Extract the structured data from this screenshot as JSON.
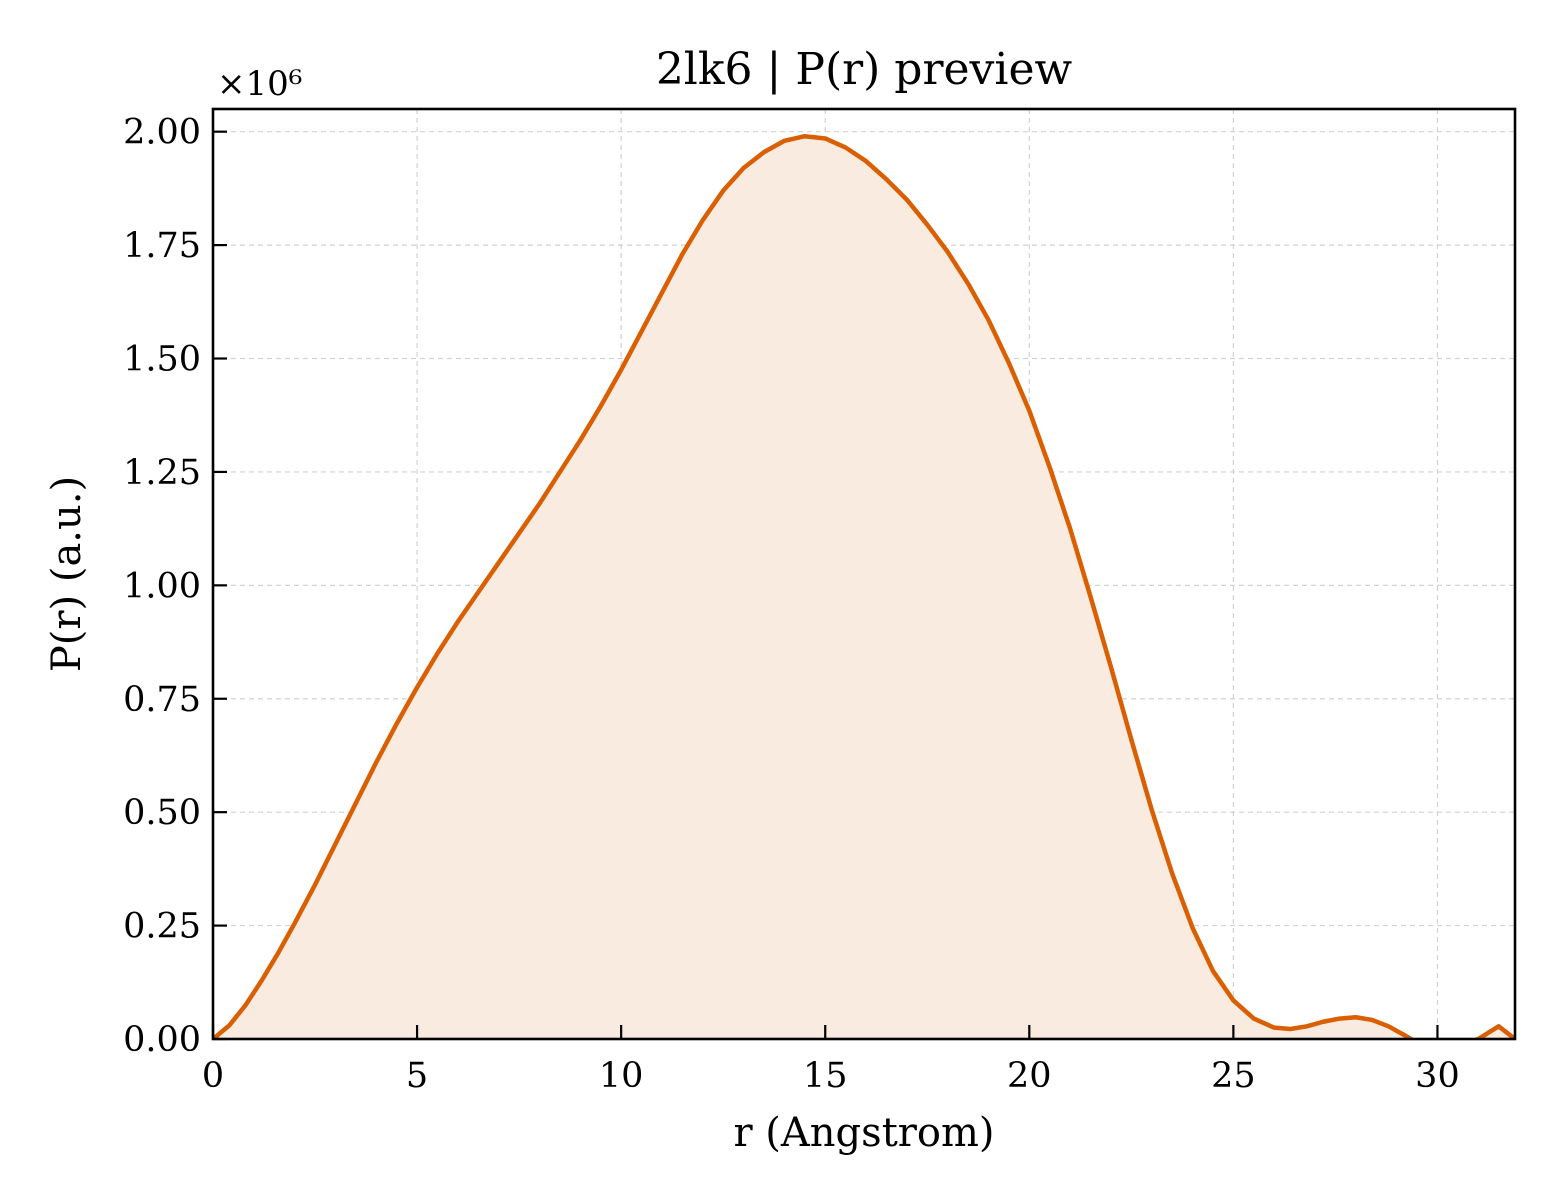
{
  "chart_data": {
    "type": "area",
    "title": "2lk6 | P(r) preview",
    "xlabel": "r (Angstrom)",
    "ylabel": "P(r) (a.u.)",
    "y_offset_label": "×10⁶",
    "y_scale": 1000000,
    "xlim": [
      0,
      31.9
    ],
    "ylim": [
      0,
      2.05
    ],
    "xticks": [
      0,
      5,
      10,
      15,
      20,
      25,
      30
    ],
    "xtick_labels": [
      "0",
      "5",
      "10",
      "15",
      "20",
      "25",
      "30"
    ],
    "yticks": [
      0,
      0.25,
      0.5,
      0.75,
      1.0,
      1.25,
      1.5,
      1.75,
      2.0
    ],
    "ytick_labels": [
      "0.00",
      "0.25",
      "0.50",
      "0.75",
      "1.00",
      "1.25",
      "1.50",
      "1.75",
      "2.00"
    ],
    "grid": true,
    "line_color": "#d95f02",
    "fill_color": "#f9ebe0",
    "series": [
      {
        "x": [
          0,
          0.4,
          0.8,
          1.2,
          1.6,
          2.0,
          2.5,
          3.0,
          3.5,
          4.0,
          4.5,
          5.0,
          5.5,
          6.0,
          6.5,
          7.0,
          7.5,
          8.0,
          8.5,
          9.0,
          9.5,
          10.0,
          10.5,
          11.0,
          11.5,
          12.0,
          12.5,
          13.0,
          13.5,
          14.0,
          14.5,
          15.0,
          15.5,
          16.0,
          16.5,
          17.0,
          17.5,
          18.0,
          18.5,
          19.0,
          19.5,
          20.0,
          20.5,
          21.0,
          21.5,
          22.0,
          22.5,
          23.0,
          23.5,
          24.0,
          24.5,
          25.0,
          25.5,
          26.0,
          26.4,
          26.8,
          27.2,
          27.6,
          28.0,
          28.4,
          28.8,
          29.2,
          29.5,
          29.8,
          30.2,
          30.6,
          31.0,
          31.5,
          31.9
        ],
        "values": [
          0,
          0.03,
          0.075,
          0.13,
          0.19,
          0.255,
          0.34,
          0.43,
          0.52,
          0.61,
          0.695,
          0.775,
          0.85,
          0.92,
          0.985,
          1.05,
          1.115,
          1.18,
          1.25,
          1.32,
          1.395,
          1.475,
          1.56,
          1.645,
          1.73,
          1.805,
          1.87,
          1.92,
          1.955,
          1.98,
          1.99,
          1.985,
          1.965,
          1.935,
          1.895,
          1.85,
          1.795,
          1.735,
          1.665,
          1.585,
          1.49,
          1.385,
          1.26,
          1.125,
          0.975,
          0.82,
          0.66,
          0.505,
          0.365,
          0.245,
          0.15,
          0.085,
          0.045,
          0.025,
          0.022,
          0.028,
          0.038,
          0.045,
          0.048,
          0.042,
          0.028,
          0.008,
          -0.008,
          -0.018,
          -0.022,
          -0.015,
          0.0,
          0.028,
          0.0
        ]
      }
    ]
  }
}
